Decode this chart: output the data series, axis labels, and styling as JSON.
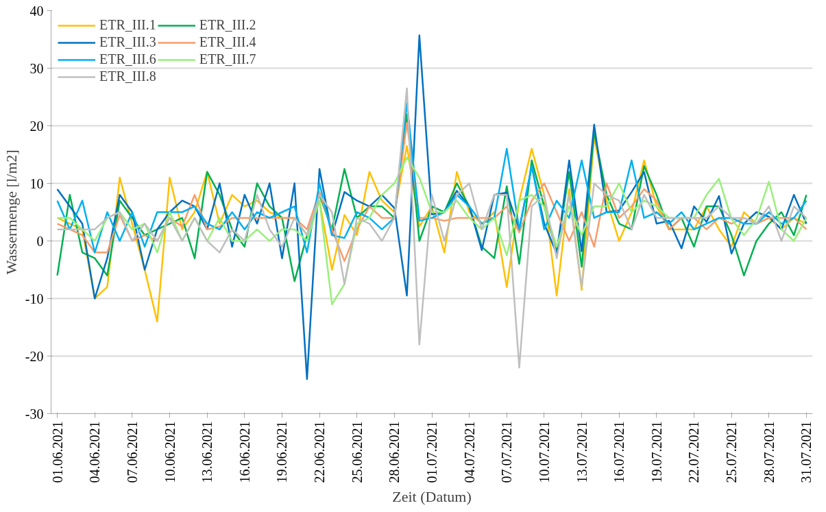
{
  "chart_data": {
    "type": "line",
    "xlabel": "Zeit (Datum)",
    "ylabel": "Wassermenge [l/m2]",
    "x": [
      "2021-06-01",
      "2021-06-02",
      "2021-06-03",
      "2021-06-04",
      "2021-06-05",
      "2021-06-06",
      "2021-06-07",
      "2021-06-08",
      "2021-06-09",
      "2021-06-10",
      "2021-06-11",
      "2021-06-12",
      "2021-06-13",
      "2021-06-14",
      "2021-06-15",
      "2021-06-16",
      "2021-06-17",
      "2021-06-18",
      "2021-06-19",
      "2021-06-20",
      "2021-06-21",
      "2021-06-22",
      "2021-06-23",
      "2021-06-24",
      "2021-06-25",
      "2021-06-26",
      "2021-06-27",
      "2021-06-28",
      "2021-06-29",
      "2021-06-30",
      "2021-07-01",
      "2021-07-02",
      "2021-07-03",
      "2021-07-04",
      "2021-07-05",
      "2021-07-06",
      "2021-07-07",
      "2021-07-08",
      "2021-07-09",
      "2021-07-10",
      "2021-07-11",
      "2021-07-12",
      "2021-07-13",
      "2021-07-14",
      "2021-07-15",
      "2021-07-16",
      "2021-07-17",
      "2021-07-18",
      "2021-07-19",
      "2021-07-20",
      "2021-07-21",
      "2021-07-22",
      "2021-07-23",
      "2021-07-24",
      "2021-07-25",
      "2021-07-26",
      "2021-07-27",
      "2021-07-28",
      "2021-07-29",
      "2021-07-30",
      "2021-07-31"
    ],
    "series": [
      {
        "name": "ETR_III.1",
        "color": "#ffc000",
        "values": [
          4,
          3,
          2,
          -10,
          -8,
          11,
          3,
          -5,
          -14,
          11,
          2,
          5,
          12,
          3,
          8,
          6,
          7,
          5,
          4,
          4,
          1,
          7,
          -5,
          4.5,
          1,
          12,
          7,
          5,
          16.5,
          2.5,
          6,
          -2,
          12,
          5,
          3,
          5,
          -8,
          7,
          16,
          8,
          -9.5,
          9,
          -8.5,
          18,
          7,
          0,
          5,
          14,
          6,
          2,
          2,
          2,
          6,
          2,
          -1,
          5,
          3,
          4,
          2,
          4,
          3
        ]
      },
      {
        "name": "ETR_III.2",
        "color": "#00b050",
        "values": [
          -6,
          8,
          -2,
          -3,
          -6,
          7,
          4,
          1,
          2,
          3,
          4,
          -3,
          12,
          8,
          2,
          -1,
          10,
          6,
          4,
          -7,
          1,
          8,
          2,
          12.5,
          4,
          6,
          6,
          4,
          22,
          0,
          6,
          5,
          10,
          6,
          -1,
          -3,
          9.5,
          -4,
          14,
          6,
          -2,
          12,
          -4.5,
          19,
          8,
          3,
          2,
          13,
          8,
          2,
          4,
          -1,
          6,
          6,
          1,
          -6,
          0,
          3,
          5,
          1,
          8
        ]
      },
      {
        "name": "ETR_III.3",
        "color": "#0070c0",
        "values": [
          9,
          6,
          3,
          -10,
          -3,
          8,
          5,
          -5,
          2,
          5,
          7,
          6,
          2,
          10,
          -1,
          8,
          3,
          10,
          -3,
          10,
          -24,
          12.5,
          1,
          8.5,
          7,
          6,
          8,
          5.7,
          -9.5,
          35.7,
          4.6,
          5,
          8.7,
          6,
          -1.6,
          8,
          8.4,
          2,
          13,
          3,
          -2.2,
          14,
          -1.8,
          20.2,
          5,
          5.3,
          8.5,
          12,
          3,
          3.5,
          -1.3,
          6,
          3.3,
          7.8,
          -2.2,
          3,
          5,
          4.2,
          2,
          8,
          3
        ]
      },
      {
        "name": "ETR_III.4",
        "color": "#f79c6b",
        "values": [
          3,
          2,
          1,
          -2,
          -2,
          4.5,
          0,
          1,
          0,
          4,
          2.5,
          8,
          2,
          2.5,
          4,
          4,
          4,
          4,
          4,
          4,
          2,
          8.5,
          2,
          -3.5,
          2,
          6,
          4,
          4,
          20.5,
          4,
          4,
          3.5,
          4,
          4,
          4,
          4,
          6,
          1.5,
          7,
          10,
          5,
          0,
          5,
          -1,
          10,
          4,
          6,
          9,
          7,
          2,
          4,
          4,
          2,
          4,
          3,
          4,
          3,
          4,
          4,
          4,
          2
        ]
      },
      {
        "name": "ETR_III.6",
        "color": "#00b0f0",
        "values": [
          7,
          2,
          7,
          -2,
          5,
          0,
          5,
          -1,
          5,
          5,
          5,
          6,
          3,
          2,
          5,
          2,
          5,
          4,
          5,
          6,
          -2,
          10,
          1,
          0.5,
          5,
          4,
          2,
          4,
          24,
          3.5,
          4,
          5,
          8,
          6,
          3,
          4,
          16,
          2,
          13,
          2,
          7,
          4,
          14,
          4,
          5,
          5,
          14,
          4,
          5,
          3,
          5,
          2,
          3,
          4,
          4,
          3,
          3,
          5,
          3,
          4,
          7
        ]
      },
      {
        "name": "ETR_III.7",
        "color": "#99f07a",
        "values": [
          4,
          4,
          2,
          0,
          4,
          5,
          2,
          3,
          -2,
          5,
          0,
          4,
          0,
          4,
          0,
          0,
          2,
          0,
          2,
          2,
          0,
          7,
          -11,
          -7.5,
          3,
          4,
          8,
          10,
          14.5,
          11,
          5,
          5,
          7,
          4,
          2,
          4,
          -2.5,
          7,
          8,
          6,
          -1,
          6,
          1,
          6,
          6,
          10,
          5,
          7,
          6,
          4,
          4,
          4,
          8,
          10.8,
          3.8,
          1,
          3.8,
          10.3,
          2,
          0,
          4
        ]
      },
      {
        "name": "ETR_III.8",
        "color": "#bfbfbf",
        "values": [
          2,
          2,
          2,
          2,
          4,
          5,
          0,
          3,
          0,
          4,
          0,
          4,
          0,
          -2,
          2,
          0,
          8,
          2,
          -1,
          4,
          1,
          8,
          5,
          -7.5,
          4,
          3,
          0,
          4,
          26.5,
          -18,
          8,
          0,
          8,
          10,
          2,
          8,
          8,
          -22,
          6,
          8,
          -3,
          8,
          -8,
          10,
          8,
          7,
          2,
          8,
          4,
          4,
          4,
          4,
          4,
          6,
          4,
          4,
          3,
          6,
          0,
          6,
          4
        ]
      }
    ],
    "xlim": [
      "2021-05-31T12:00",
      "2021-07-31T12:00"
    ],
    "xticks": [
      {
        "value": "2021-06-01",
        "label": "01.06.2021"
      },
      {
        "value": "2021-06-04",
        "label": "04.06.2021"
      },
      {
        "value": "2021-06-07",
        "label": "07.06.2021"
      },
      {
        "value": "2021-06-10",
        "label": "10.06.2021"
      },
      {
        "value": "2021-06-13",
        "label": "13.06.2021"
      },
      {
        "value": "2021-06-16",
        "label": "16.06.2021"
      },
      {
        "value": "2021-06-19",
        "label": "19.06.2021"
      },
      {
        "value": "2021-06-22",
        "label": "22.06.2021"
      },
      {
        "value": "2021-06-25",
        "label": "25.06.2021"
      },
      {
        "value": "2021-06-28",
        "label": "28.06.2021"
      },
      {
        "value": "2021-07-01",
        "label": "01.07.2021"
      },
      {
        "value": "2021-07-04",
        "label": "04.07.2021"
      },
      {
        "value": "2021-07-07",
        "label": "07.07.2021"
      },
      {
        "value": "2021-07-10",
        "label": "10.07.2021"
      },
      {
        "value": "2021-07-13",
        "label": "13.07.2021"
      },
      {
        "value": "2021-07-16",
        "label": "16.07.2021"
      },
      {
        "value": "2021-07-19",
        "label": "19.07.2021"
      },
      {
        "value": "2021-07-22",
        "label": "22.07.2021"
      },
      {
        "value": "2021-07-25",
        "label": "25.07.2021"
      },
      {
        "value": "2021-07-28",
        "label": "28.07.2021"
      },
      {
        "value": "2021-07-31",
        "label": "31.07.2021"
      }
    ],
    "ylim": [
      -30,
      40
    ],
    "yticks": [
      -30,
      -20,
      -10,
      0,
      10,
      20,
      30,
      40
    ],
    "grid": "y",
    "legend": "top left",
    "marker": "none",
    "line_style": "solid"
  }
}
